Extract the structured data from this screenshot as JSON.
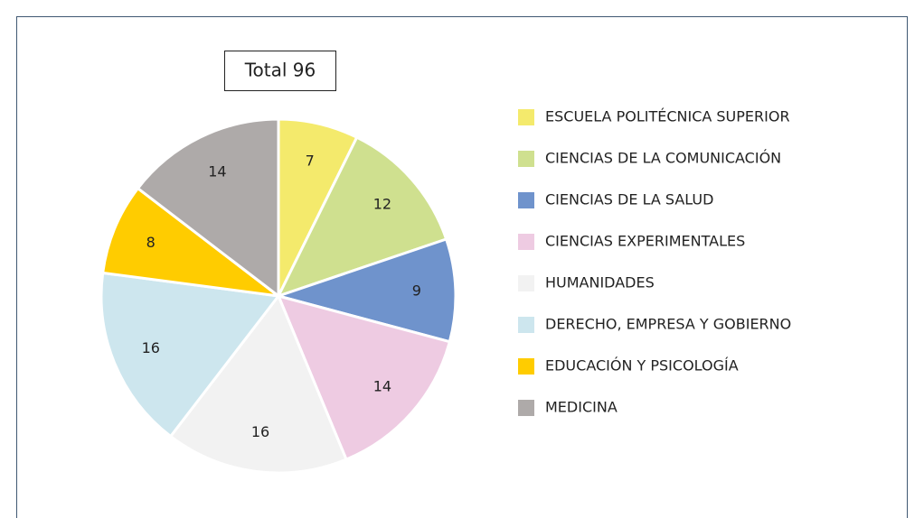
{
  "chart_data": {
    "type": "pie",
    "title": "Total 96",
    "categories": [
      "ESCUELA POLITÉCNICA SUPERIOR",
      "CIENCIAS DE LA COMUNICACIÓN",
      "CIENCIAS DE LA SALUD",
      "CIENCIAS EXPERIMENTALES",
      "HUMANIDADES",
      "DERECHO, EMPRESA Y GOBIERNO",
      "EDUCACIÓN Y PSICOLOGÍA",
      "MEDICINA"
    ],
    "values": [
      7,
      12,
      9,
      14,
      16,
      16,
      8,
      14
    ],
    "colors": [
      "#f4ea6c",
      "#cfe08f",
      "#6f93cc",
      "#eecbe2",
      "#f2f2f2",
      "#cde6ee",
      "#ffcc00",
      "#aeaaa9"
    ],
    "legend": "right"
  }
}
